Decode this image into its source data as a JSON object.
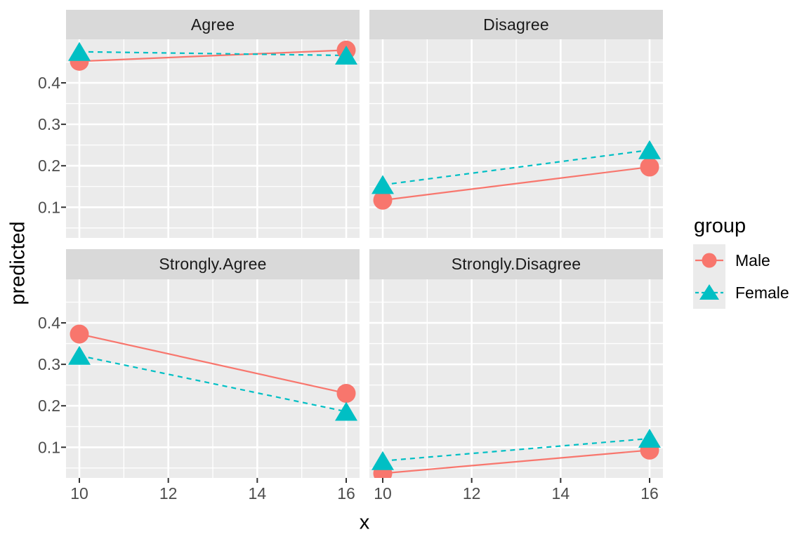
{
  "chart_data": {
    "type": "line",
    "title": "",
    "xlabel": "x",
    "ylabel": "predicted",
    "legend_title": "group",
    "legend_position": "right",
    "grid": true,
    "x": [
      10,
      16
    ],
    "x_ticks": [
      10,
      12,
      14,
      16
    ],
    "x_minor_ticks": [
      11,
      13,
      15
    ],
    "y_ticks": [
      0.1,
      0.2,
      0.3,
      0.4
    ],
    "y_minor_ticks": [
      0.05,
      0.15,
      0.25,
      0.35,
      0.45
    ],
    "xlim": [
      9.7,
      16.3
    ],
    "ylim": [
      0.026,
      0.505
    ],
    "series_style": [
      {
        "name": "Male",
        "color": "#F8766D",
        "marker": "circle",
        "line_style": "solid"
      },
      {
        "name": "Female",
        "color": "#00BFC4",
        "marker": "triangle",
        "line_style": "dashed"
      }
    ],
    "facets": [
      {
        "label": "Agree",
        "series": [
          {
            "name": "Male",
            "values": [
              0.452,
              0.479
            ]
          },
          {
            "name": "Female",
            "values": [
              0.475,
              0.466
            ]
          }
        ]
      },
      {
        "label": "Disagree",
        "series": [
          {
            "name": "Male",
            "values": [
              0.117,
              0.197
            ]
          },
          {
            "name": "Female",
            "values": [
              0.154,
              0.238
            ]
          }
        ]
      },
      {
        "label": "Strongly.Agree",
        "series": [
          {
            "name": "Male",
            "values": [
              0.373,
              0.23
            ]
          },
          {
            "name": "Female",
            "values": [
              0.321,
              0.186
            ]
          }
        ]
      },
      {
        "label": "Strongly.Disagree",
        "series": [
          {
            "name": "Male",
            "values": [
              0.037,
              0.093
            ]
          },
          {
            "name": "Female",
            "values": [
              0.067,
              0.121
            ]
          }
        ]
      }
    ],
    "colors": {
      "male": "#F8766D",
      "female": "#00BFC4",
      "panel_bg": "#EBEBEB",
      "strip_bg": "#D9D9D9",
      "grid": "#FFFFFF",
      "tick_label": "#4D4D4D",
      "tick_mark": "#333333",
      "axis_title": "#000000",
      "strip_text": "#1A1A1A",
      "legend_key_bg": "#EBEBEB",
      "background": "#FFFFFF"
    }
  }
}
